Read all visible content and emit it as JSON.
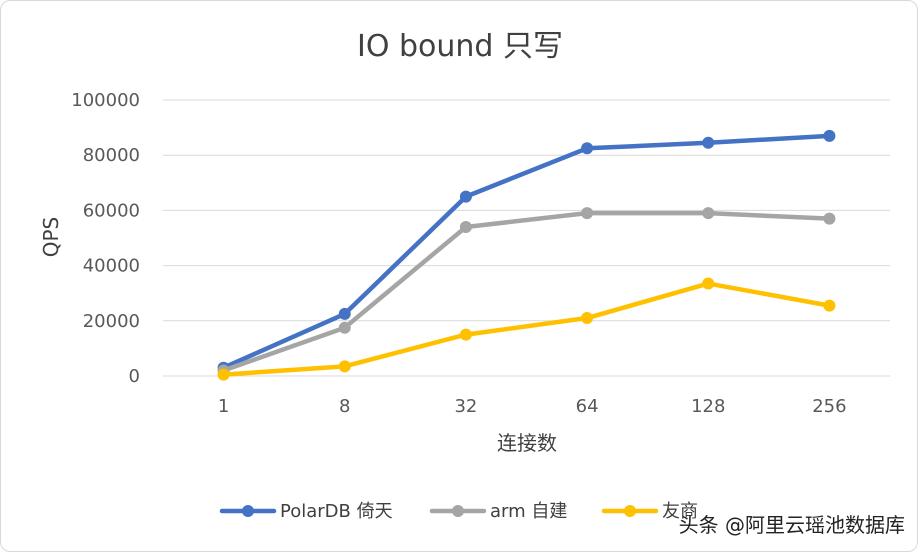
{
  "chart_data": {
    "type": "line",
    "title": "IO bound 只写",
    "xlabel": "连接数",
    "ylabel": "QPS",
    "categories": [
      "1",
      "8",
      "32",
      "64",
      "128",
      "256"
    ],
    "ylim": [
      0,
      100000
    ],
    "yticks": [
      0,
      20000,
      40000,
      60000,
      80000,
      100000
    ],
    "grid": true,
    "legend_position": "bottom",
    "series": [
      {
        "name": "PolarDB 倚天",
        "color": "#4472C4",
        "values": [
          3000,
          22500,
          65000,
          82500,
          84500,
          87000
        ]
      },
      {
        "name": "arm 自建",
        "color": "#A5A5A5",
        "values": [
          2000,
          17500,
          54000,
          59000,
          59000,
          57000
        ]
      },
      {
        "name": "友商",
        "color": "#FFC000",
        "values": [
          500,
          3500,
          15000,
          21000,
          33500,
          25500
        ]
      }
    ]
  },
  "watermark": "头条 @阿里云瑶池数据库"
}
